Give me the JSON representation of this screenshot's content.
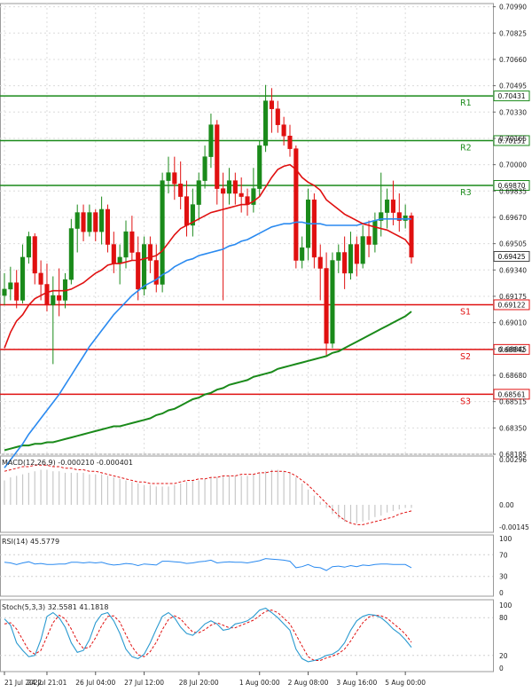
{
  "chart_data": {
    "type": "candlestick",
    "price_panel": {
      "ylim": [
        0.68185,
        0.7101
      ],
      "y_ticks": [
        "0.70990",
        "0.70825",
        "0.70660",
        "0.70495",
        "0.70330",
        "0.70165",
        "0.70000",
        "0.69835",
        "0.69670",
        "0.69505",
        "0.69340",
        "0.69175",
        "0.69010",
        "0.68845",
        "0.68680",
        "0.68515",
        "0.68350",
        "0.68185"
      ],
      "current_price": "0.69425",
      "current_price_value": 0.69425,
      "levels": [
        {
          "name": "R1",
          "value": 0.70431,
          "label": "0.70431",
          "kind": "resistance",
          "color": "#1a8a1a"
        },
        {
          "name": "R2",
          "value": 0.70151,
          "label": "0.70151",
          "kind": "resistance",
          "color": "#1a8a1a"
        },
        {
          "name": "R3",
          "value": 0.6987,
          "label": "0.69870",
          "kind": "resistance",
          "color": "#1a8a1a"
        },
        {
          "name": "S1",
          "value": 0.69122,
          "label": "0.69122",
          "kind": "support",
          "color": "#e01010"
        },
        {
          "name": "S2",
          "value": 0.68842,
          "label": "0.68842",
          "kind": "support",
          "color": "#e01010"
        },
        {
          "name": "S3",
          "value": 0.68561,
          "label": "0.68561",
          "kind": "support",
          "color": "#e01010"
        }
      ],
      "candles": [
        [
          0.6918,
          0.6932,
          0.6912,
          0.6922
        ],
        [
          0.6922,
          0.6936,
          0.6915,
          0.6926
        ],
        [
          0.6926,
          0.6934,
          0.691,
          0.6915
        ],
        [
          0.6915,
          0.695,
          0.6913,
          0.6942
        ],
        [
          0.6942,
          0.6958,
          0.6938,
          0.6955
        ],
        [
          0.6955,
          0.6957,
          0.6925,
          0.6932
        ],
        [
          0.6932,
          0.694,
          0.6915,
          0.6925
        ],
        [
          0.6925,
          0.6938,
          0.6908,
          0.6912
        ],
        [
          0.6912,
          0.693,
          0.6875,
          0.6918
        ],
        [
          0.6918,
          0.6935,
          0.6905,
          0.6915
        ],
        [
          0.6915,
          0.6932,
          0.691,
          0.6928
        ],
        [
          0.6928,
          0.6966,
          0.6925,
          0.696
        ],
        [
          0.696,
          0.6975,
          0.6945,
          0.697
        ],
        [
          0.697,
          0.6975,
          0.6952,
          0.6958
        ],
        [
          0.6958,
          0.6975,
          0.6955,
          0.697
        ],
        [
          0.697,
          0.6972,
          0.6952,
          0.6958
        ],
        [
          0.6958,
          0.698,
          0.695,
          0.6972
        ],
        [
          0.6972,
          0.6975,
          0.6945,
          0.695
        ],
        [
          0.695,
          0.6958,
          0.6932,
          0.6938
        ],
        [
          0.6938,
          0.695,
          0.6925,
          0.6942
        ],
        [
          0.6942,
          0.6965,
          0.6935,
          0.6958
        ],
        [
          0.6958,
          0.6968,
          0.694,
          0.6945
        ],
        [
          0.6945,
          0.6955,
          0.6915,
          0.6922
        ],
        [
          0.6922,
          0.6955,
          0.6918,
          0.695
        ],
        [
          0.695,
          0.6955,
          0.6932,
          0.694
        ],
        [
          0.694,
          0.695,
          0.692,
          0.6925
        ],
        [
          0.6925,
          0.6995,
          0.692,
          0.699
        ],
        [
          0.699,
          0.7005,
          0.6982,
          0.6995
        ],
        [
          0.6995,
          0.7005,
          0.6978,
          0.6988
        ],
        [
          0.6988,
          0.7002,
          0.6972,
          0.698
        ],
        [
          0.698,
          0.699,
          0.6955,
          0.6962
        ],
        [
          0.6962,
          0.6985,
          0.6955,
          0.6975
        ],
        [
          0.6975,
          0.6995,
          0.6965,
          0.699
        ],
        [
          0.699,
          0.7012,
          0.6985,
          0.7005
        ],
        [
          0.7005,
          0.7032,
          0.6998,
          0.7025
        ],
        [
          0.7025,
          0.7028,
          0.6975,
          0.6985
        ],
        [
          0.6985,
          0.6995,
          0.6915,
          0.6982
        ],
        [
          0.6982,
          0.6998,
          0.6975,
          0.699
        ],
        [
          0.699,
          0.6995,
          0.6975,
          0.6982
        ],
        [
          0.6982,
          0.6992,
          0.697,
          0.698
        ],
        [
          0.698,
          0.6985,
          0.6968,
          0.6975
        ],
        [
          0.6975,
          0.6998,
          0.697,
          0.6985
        ],
        [
          0.6985,
          0.7015,
          0.698,
          0.7012
        ],
        [
          0.7012,
          0.705,
          0.7008,
          0.704
        ],
        [
          0.704,
          0.7048,
          0.702,
          0.7035
        ],
        [
          0.7035,
          0.704,
          0.702,
          0.7025
        ],
        [
          0.7025,
          0.703,
          0.7012,
          0.7018
        ],
        [
          0.7018,
          0.7025,
          0.7005,
          0.701
        ],
        [
          0.701,
          0.7012,
          0.6935,
          0.694
        ],
        [
          0.694,
          0.6955,
          0.6935,
          0.6948
        ],
        [
          0.6948,
          0.6985,
          0.694,
          0.6978
        ],
        [
          0.6978,
          0.6982,
          0.6935,
          0.6942
        ],
        [
          0.6942,
          0.695,
          0.6915,
          0.6935
        ],
        [
          0.6935,
          0.6945,
          0.688,
          0.6888
        ],
        [
          0.6888,
          0.6945,
          0.6885,
          0.694
        ],
        [
          0.694,
          0.695,
          0.6932,
          0.6945
        ],
        [
          0.6945,
          0.6955,
          0.6922,
          0.6932
        ],
        [
          0.6932,
          0.6958,
          0.6928,
          0.695
        ],
        [
          0.695,
          0.6955,
          0.693,
          0.6938
        ],
        [
          0.6938,
          0.6962,
          0.6935,
          0.6955
        ],
        [
          0.6955,
          0.6965,
          0.6942,
          0.695
        ],
        [
          0.695,
          0.697,
          0.6945,
          0.6965
        ],
        [
          0.6965,
          0.6995,
          0.6955,
          0.697
        ],
        [
          0.697,
          0.6985,
          0.696,
          0.6978
        ],
        [
          0.6978,
          0.699,
          0.6962,
          0.697
        ],
        [
          0.697,
          0.6982,
          0.6958,
          0.6965
        ],
        [
          0.6965,
          0.6975,
          0.696,
          0.6968
        ],
        [
          0.6968,
          0.697,
          0.6938,
          0.6942
        ]
      ],
      "sma_fast": [
        0.6885,
        0.6895,
        0.6902,
        0.6906,
        0.6912,
        0.6916,
        0.6918,
        0.692,
        0.6921,
        0.6921,
        0.6921,
        0.6922,
        0.6924,
        0.6926,
        0.6929,
        0.6932,
        0.6934,
        0.6937,
        0.6938,
        0.6938,
        0.6939,
        0.694,
        0.694,
        0.6941,
        0.6942,
        0.6943,
        0.6946,
        0.6951,
        0.6956,
        0.696,
        0.6962,
        0.6964,
        0.6966,
        0.6968,
        0.697,
        0.6971,
        0.6972,
        0.6973,
        0.6974,
        0.6975,
        0.6975,
        0.6977,
        0.698,
        0.6986,
        0.6992,
        0.6997,
        0.6999,
        0.7,
        0.6997,
        0.6992,
        0.6989,
        0.6987,
        0.6984,
        0.6978,
        0.6975,
        0.6972,
        0.6969,
        0.6967,
        0.6965,
        0.6963,
        0.6962,
        0.6961,
        0.696,
        0.6959,
        0.6957,
        0.6955,
        0.6953,
        0.6948
      ],
      "sma_medium": [
        0.681,
        0.6815,
        0.682,
        0.6825,
        0.6831,
        0.6836,
        0.6841,
        0.6846,
        0.6851,
        0.6856,
        0.6862,
        0.6868,
        0.6874,
        0.688,
        0.6886,
        0.6891,
        0.6896,
        0.6901,
        0.6906,
        0.691,
        0.6914,
        0.6918,
        0.6921,
        0.6924,
        0.6926,
        0.6928,
        0.6931,
        0.6933,
        0.6936,
        0.6938,
        0.694,
        0.6941,
        0.6943,
        0.6944,
        0.6945,
        0.6946,
        0.6947,
        0.6949,
        0.695,
        0.6952,
        0.6953,
        0.6955,
        0.6957,
        0.6959,
        0.6961,
        0.6962,
        0.6963,
        0.6963,
        0.6964,
        0.6964,
        0.6963,
        0.6963,
        0.6963,
        0.6962,
        0.6962,
        0.6962,
        0.6962,
        0.6962,
        0.6962,
        0.6963,
        0.6964,
        0.6965,
        0.6966,
        0.6966,
        0.6966,
        0.6966,
        0.6966,
        0.6966
      ],
      "sma_slow": [
        0.6821,
        0.6822,
        0.6823,
        0.6824,
        0.6824,
        0.6825,
        0.6825,
        0.6826,
        0.6826,
        0.6827,
        0.6828,
        0.6829,
        0.683,
        0.6831,
        0.6832,
        0.6833,
        0.6834,
        0.6835,
        0.6836,
        0.6836,
        0.6837,
        0.6838,
        0.6839,
        0.684,
        0.6841,
        0.6843,
        0.6844,
        0.6846,
        0.6847,
        0.6849,
        0.6851,
        0.6853,
        0.6854,
        0.6856,
        0.6857,
        0.6859,
        0.686,
        0.6862,
        0.6863,
        0.6864,
        0.6865,
        0.6867,
        0.6868,
        0.6869,
        0.687,
        0.6872,
        0.6873,
        0.6874,
        0.6875,
        0.6876,
        0.6877,
        0.6878,
        0.6879,
        0.688,
        0.6882,
        0.6883,
        0.6885,
        0.6887,
        0.6889,
        0.6891,
        0.6893,
        0.6895,
        0.6897,
        0.6899,
        0.6901,
        0.6903,
        0.6905,
        0.6908
      ],
      "colors": {
        "up": "#1a8a1a",
        "down": "#e01010",
        "sma_fast": "#e01010",
        "sma_medium": "#2a8af0",
        "sma_slow": "#1a8a1a",
        "grid": "#d8d8d8"
      }
    },
    "macd_panel": {
      "label": "MACD(12,26,9) -0.000210 -0.000401",
      "ylim": [
        -0.0018,
        0.0032
      ],
      "y_ticks": [
        "0.00296",
        "0.00",
        "-0.00145"
      ],
      "histogram": [
        0.0016,
        0.0018,
        0.0019,
        0.002,
        0.0021,
        0.0022,
        0.0023,
        0.0023,
        0.0022,
        0.0022,
        0.0021,
        0.0021,
        0.0021,
        0.0021,
        0.002,
        0.002,
        0.002,
        0.0019,
        0.0018,
        0.0017,
        0.0016,
        0.0015,
        0.0014,
        0.0013,
        0.0013,
        0.0012,
        0.0012,
        0.0012,
        0.0013,
        0.0014,
        0.0015,
        0.0016,
        0.0016,
        0.0017,
        0.0018,
        0.0018,
        0.0019,
        0.0019,
        0.0019,
        0.0019,
        0.0019,
        0.002,
        0.0021,
        0.0022,
        0.0023,
        0.0023,
        0.0022,
        0.0021,
        0.0018,
        0.0014,
        0.001,
        0.0006,
        0.0002,
        -0.0002,
        -0.0006,
        -0.0009,
        -0.0011,
        -0.0012,
        -0.0012,
        -0.0011,
        -0.001,
        -0.0008,
        -0.0007,
        -0.0005,
        -0.0004,
        -0.0003,
        -0.0002,
        -0.0002
      ],
      "signal": [
        0.0022,
        0.0023,
        0.0024,
        0.0025,
        0.0025,
        0.0026,
        0.0026,
        0.0026,
        0.0025,
        0.0025,
        0.0024,
        0.0024,
        0.0023,
        0.0023,
        0.0022,
        0.0022,
        0.0021,
        0.002,
        0.0019,
        0.0018,
        0.0017,
        0.0016,
        0.0015,
        0.0015,
        0.0014,
        0.0014,
        0.0014,
        0.0014,
        0.0014,
        0.0015,
        0.0016,
        0.0016,
        0.0017,
        0.0017,
        0.0018,
        0.0018,
        0.0019,
        0.0019,
        0.0019,
        0.002,
        0.002,
        0.002,
        0.0021,
        0.0021,
        0.0022,
        0.0022,
        0.0022,
        0.0021,
        0.0019,
        0.0016,
        0.0013,
        0.0009,
        0.0005,
        0.0001,
        -0.0003,
        -0.0007,
        -0.001,
        -0.0012,
        -0.0013,
        -0.0013,
        -0.0012,
        -0.0011,
        -0.001,
        -0.0009,
        -0.0008,
        -0.0006,
        -0.0005,
        -0.0004
      ],
      "colors": {
        "histogram": "#c8c8c8",
        "signal": "#e01010"
      }
    },
    "rsi_panel": {
      "label": "RSI(14) 45.5779",
      "ylim": [
        0,
        100
      ],
      "y_ticks": [
        "100",
        "70",
        "30",
        "0"
      ],
      "values": [
        56,
        55,
        52,
        55,
        57,
        53,
        54,
        52,
        52,
        53,
        53,
        56,
        56,
        55,
        56,
        55,
        56,
        53,
        51,
        52,
        54,
        53,
        50,
        53,
        52,
        51,
        58,
        58,
        57,
        56,
        54,
        55,
        57,
        58,
        60,
        55,
        56,
        57,
        56,
        56,
        55,
        57,
        59,
        63,
        62,
        61,
        60,
        58,
        46,
        48,
        52,
        47,
        46,
        41,
        48,
        49,
        47,
        50,
        48,
        51,
        50,
        52,
        53,
        53,
        52,
        52,
        52,
        46
      ],
      "colors": {
        "line": "#2a8af0"
      }
    },
    "stoch_panel": {
      "label": "Stoch(5,3,3) 32.5581 41.1818",
      "ylim": [
        0,
        100
      ],
      "y_ticks": [
        "100",
        "80",
        "20",
        "0"
      ],
      "k": [
        78,
        68,
        40,
        28,
        18,
        20,
        45,
        82,
        88,
        80,
        65,
        40,
        25,
        28,
        45,
        72,
        85,
        88,
        75,
        55,
        30,
        18,
        15,
        22,
        40,
        62,
        82,
        88,
        80,
        65,
        55,
        52,
        60,
        70,
        75,
        70,
        60,
        62,
        70,
        72,
        75,
        82,
        92,
        95,
        88,
        80,
        70,
        60,
        30,
        15,
        10,
        12,
        15,
        20,
        22,
        28,
        40,
        60,
        75,
        82,
        85,
        84,
        80,
        72,
        62,
        55,
        45,
        33
      ],
      "d": [
        70,
        72,
        62,
        45,
        28,
        22,
        28,
        50,
        72,
        84,
        78,
        62,
        43,
        31,
        33,
        48,
        67,
        82,
        83,
        73,
        53,
        34,
        21,
        18,
        26,
        41,
        61,
        77,
        83,
        78,
        67,
        57,
        56,
        61,
        68,
        72,
        68,
        64,
        64,
        68,
        72,
        76,
        83,
        90,
        92,
        88,
        79,
        70,
        53,
        35,
        18,
        12,
        12,
        16,
        19,
        23,
        30,
        43,
        58,
        72,
        81,
        84,
        83,
        79,
        71,
        63,
        54,
        41
      ],
      "colors": {
        "k": "#2a9ad0",
        "d": "#e01010"
      }
    },
    "x_ticks": [
      {
        "index": 0,
        "label": "21 Jul 2022"
      },
      {
        "index": 7,
        "label": "24 Jul 21:01"
      },
      {
        "index": 15,
        "label": "26 Jul 04:00"
      },
      {
        "index": 23,
        "label": "27 Jul 12:00"
      },
      {
        "index": 32,
        "label": "28 Jul 20:00"
      },
      {
        "index": 42,
        "label": "1 Aug 00:00"
      },
      {
        "index": 50,
        "label": "2 Aug 08:00"
      },
      {
        "index": 58,
        "label": "3 Aug 16:00"
      },
      {
        "index": 66,
        "label": "5 Aug 00:00"
      }
    ]
  }
}
